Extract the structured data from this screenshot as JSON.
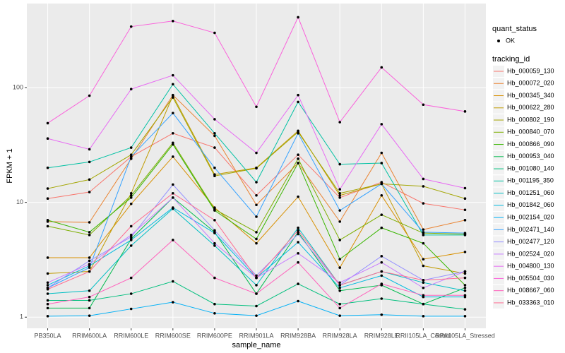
{
  "chart_data": {
    "type": "line",
    "x_label": "sample_name",
    "y_label": "FPKM + 1",
    "log_y": true,
    "grid": true,
    "categories": [
      "PB350LA",
      "RRIM600LA",
      "RRIM600LE",
      "RRIM600SE",
      "RRIM600PE",
      "RRIM901LA",
      "RRIM928BA",
      "RRIM928LA",
      "RRIM928LE",
      "RRII105LA_Control",
      "RRII105LA_Stressed"
    ],
    "ylim": [
      0.8,
      540
    ],
    "yticks": [
      1,
      10,
      100
    ],
    "legend_point_title": "quant_status",
    "legend_point_label": "OK",
    "legend_title": "tracking_id",
    "series": [
      {
        "name": "Hb_000059_130",
        "color": "#F8766D",
        "values": [
          10.8,
          12.3,
          25,
          40,
          30,
          11.5,
          26,
          11,
          15,
          9.8,
          8.6
        ]
      },
      {
        "name": "Hb_000072_020",
        "color": "#EA8331",
        "values": [
          6.8,
          6.7,
          24,
          86,
          38,
          9.5,
          22,
          6.8,
          27,
          5.8,
          7
        ]
      },
      {
        "name": "Hb_000345_340",
        "color": "#D89000",
        "values": [
          3.3,
          3.3,
          9.7,
          25,
          9,
          4.4,
          11.2,
          2.7,
          11.5,
          3.2,
          3.7
        ]
      },
      {
        "name": "Hb_000622_280",
        "color": "#C09B00",
        "values": [
          2.4,
          2.5,
          12,
          85,
          17.5,
          20,
          42,
          11.5,
          14.5,
          2.8,
          2.4
        ]
      },
      {
        "name": "Hb_000802_190",
        "color": "#A3A500",
        "values": [
          13.2,
          15.8,
          26,
          82,
          17,
          19.8,
          41,
          12,
          14.5,
          13.8,
          10.8
        ]
      },
      {
        "name": "Hb_000840_070",
        "color": "#7CAE00",
        "values": [
          6.2,
          5.2,
          11.5,
          33,
          8.7,
          5.5,
          24,
          4.7,
          7.8,
          5.4,
          5.3
        ]
      },
      {
        "name": "Hb_000866_090",
        "color": "#39B600",
        "values": [
          7,
          5.5,
          11,
          32,
          8.5,
          4.8,
          22,
          3.2,
          6,
          4.4,
          1.9
        ]
      },
      {
        "name": "Hb_000953_040",
        "color": "#00BB4E",
        "values": [
          1.2,
          1.2,
          4.8,
          11,
          5.5,
          1.6,
          5.5,
          1.7,
          1.9,
          1.3,
          1.8
        ]
      },
      {
        "name": "Hb_001080_140",
        "color": "#00BF7D",
        "values": [
          1.4,
          1.4,
          1.6,
          2.05,
          1.3,
          1.25,
          1.95,
          1.3,
          1.45,
          1.3,
          1.17
        ]
      },
      {
        "name": "Hb_001195_350",
        "color": "#00C1A3",
        "values": [
          20,
          22.5,
          30,
          107,
          40,
          15,
          75,
          21.5,
          22,
          5.2,
          5.2
        ]
      },
      {
        "name": "Hb_001251_060",
        "color": "#00BFC4",
        "values": [
          1.6,
          1.7,
          4.2,
          8.8,
          4.2,
          1.9,
          6,
          1.9,
          2.5,
          2,
          1.7
        ]
      },
      {
        "name": "Hb_001842_060",
        "color": "#00BAE0",
        "values": [
          1.9,
          2.8,
          4.7,
          9,
          5.4,
          2.2,
          4.5,
          1.8,
          2.3,
          1.5,
          1.5
        ]
      },
      {
        "name": "Hb_002154_020",
        "color": "#00B0F6",
        "values": [
          1.02,
          1.03,
          1.18,
          1.35,
          1.08,
          1.03,
          1.38,
          1.03,
          1.05,
          1.02,
          1.02
        ]
      },
      {
        "name": "Hb_002471_140",
        "color": "#35A2FF",
        "values": [
          1.8,
          2.7,
          25,
          60,
          20,
          7.5,
          40,
          8.5,
          14.5,
          5.5,
          5.4
        ]
      },
      {
        "name": "Hb_002477_120",
        "color": "#9590FF",
        "values": [
          1.8,
          3.1,
          5,
          14.3,
          5.7,
          2.3,
          5.3,
          1.9,
          3.4,
          2.1,
          2.5
        ]
      },
      {
        "name": "Hb_002524_020",
        "color": "#C77CFF",
        "values": [
          2,
          2.9,
          5.2,
          11,
          4.4,
          2.2,
          3.6,
          2,
          3,
          1.8,
          2.5
        ]
      },
      {
        "name": "Hb_004800_130",
        "color": "#E76BF3",
        "values": [
          36,
          29,
          97,
          128,
          53,
          27,
          86,
          13,
          48,
          16,
          13.3
        ]
      },
      {
        "name": "Hb_005504_030",
        "color": "#FA62DB",
        "values": [
          49,
          85,
          340,
          380,
          300,
          68,
          410,
          50,
          150,
          71,
          62
        ]
      },
      {
        "name": "Hb_008667_060",
        "color": "#FF62BC",
        "values": [
          1.3,
          1.5,
          2.2,
          4.7,
          2.2,
          1.6,
          3,
          1.2,
          1.95,
          1.55,
          1.55
        ]
      },
      {
        "name": "Hb_033363_010",
        "color": "#FF6C91",
        "values": [
          1.75,
          2.5,
          6.2,
          12,
          7,
          2.2,
          5.7,
          1.9,
          2.5,
          2.1,
          2.2
        ]
      }
    ]
  }
}
